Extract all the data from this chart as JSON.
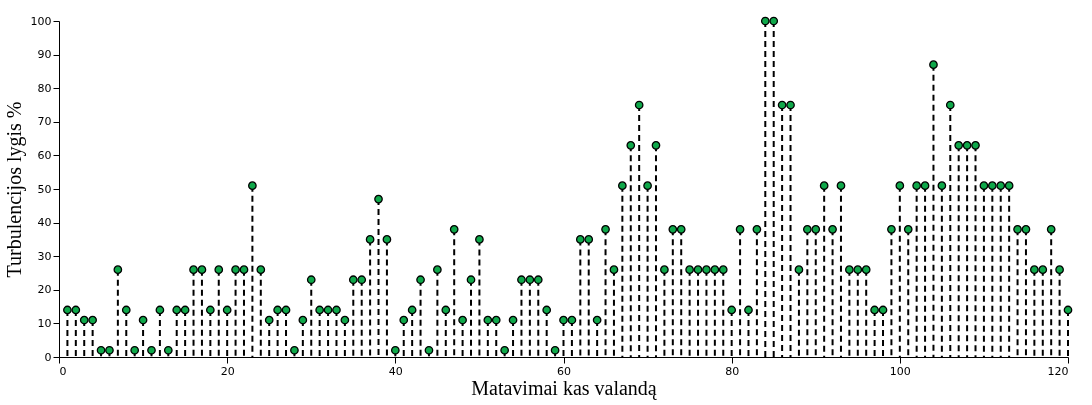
{
  "chart_data": {
    "type": "lollipop",
    "xlabel": "Matavimai kas valandą",
    "ylabel": "Turbulencijos lygis %",
    "x": [
      1,
      2,
      3,
      4,
      5,
      6,
      7,
      8,
      9,
      10,
      11,
      12,
      13,
      14,
      15,
      16,
      17,
      18,
      19,
      20,
      21,
      22,
      23,
      24,
      25,
      26,
      27,
      28,
      29,
      30,
      31,
      32,
      33,
      34,
      35,
      36,
      37,
      38,
      39,
      40,
      41,
      42,
      43,
      44,
      45,
      46,
      47,
      48,
      49,
      50,
      51,
      52,
      53,
      54,
      55,
      56,
      57,
      58,
      59,
      60,
      61,
      62,
      63,
      64,
      65,
      66,
      67,
      68,
      69,
      70,
      71,
      72,
      73,
      74,
      75,
      76,
      77,
      78,
      79,
      80,
      81,
      82,
      83,
      84,
      85,
      86,
      87,
      88,
      89,
      90,
      91,
      92,
      93,
      94,
      95,
      96,
      97,
      98,
      99,
      100,
      101,
      102,
      103,
      104,
      105,
      106,
      107,
      108,
      109,
      110,
      111,
      112,
      113,
      114,
      115,
      116,
      117,
      118,
      119,
      120
    ],
    "series": [
      {
        "color": "#0fa84a",
        "values": [
          14,
          14,
          11,
          11,
          2,
          2,
          26,
          14,
          2,
          11,
          2,
          14,
          2,
          14,
          14,
          26,
          26,
          14,
          26,
          14,
          26,
          26,
          51,
          26,
          11,
          14,
          14,
          2,
          11,
          23,
          14,
          14,
          14,
          11,
          23,
          23,
          35,
          47,
          35,
          2,
          11,
          14,
          23,
          2,
          26,
          14,
          38,
          11,
          23,
          35,
          11,
          11,
          2,
          11,
          23,
          23,
          23,
          14,
          2,
          11,
          11,
          35,
          35,
          11,
          38,
          26,
          51,
          63,
          75,
          51,
          63,
          26,
          38,
          38,
          26,
          26,
          26,
          26,
          26,
          14,
          38,
          14,
          38,
          100,
          100,
          75,
          75,
          26,
          38,
          38,
          51,
          38,
          51,
          26,
          26,
          26,
          14,
          14,
          38,
          51,
          38,
          51,
          51,
          87,
          51,
          75,
          63,
          63,
          63,
          51,
          51,
          51,
          51,
          38,
          38,
          26,
          26,
          38,
          26,
          14
        ]
      }
    ],
    "xlim": [
      0,
      120
    ],
    "xticks": [
      0,
      20,
      40,
      60,
      80,
      100,
      120
    ],
    "ylim": [
      0,
      100
    ],
    "yticks": [
      0,
      10,
      20,
      30,
      40,
      50,
      60,
      70,
      80,
      90,
      100
    ],
    "marker": "circle",
    "line_style": "dashed"
  }
}
